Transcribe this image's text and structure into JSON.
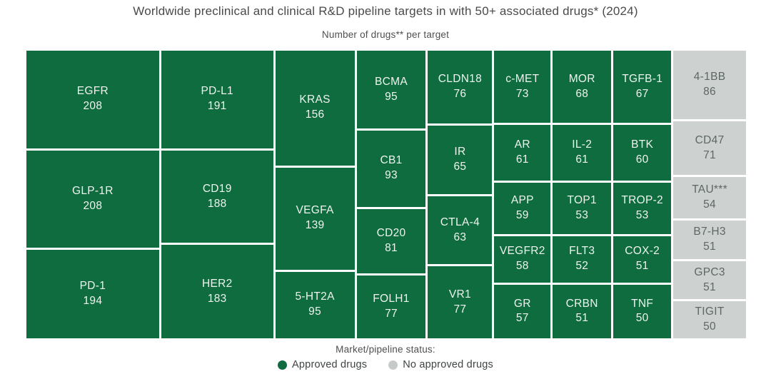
{
  "title": "Worldwide preclinical and clinical R&D pipeline targets in with 50+ associated drugs* (2024)",
  "subtitle": "Number of drugs** per target",
  "legend": {
    "title": "Market/pipeline status:",
    "items": [
      {
        "label": "Approved drugs",
        "color": "#0e6c3e"
      },
      {
        "label": "No approved drugs",
        "color": "#c6cbc9"
      }
    ]
  },
  "colors": {
    "approved_cell": "#0e6c3e",
    "no_approved_cell": "#cdd2d0",
    "approved_text": "#eff4f0",
    "no_approved_text": "#5d6764",
    "background": "#ffffff"
  },
  "chart_data": {
    "type": "treemap",
    "title": "Worldwide preclinical and clinical R&D pipeline targets in with 50+ associated drugs* (2024)",
    "value_label": "Number of drugs** per target",
    "legend": [
      "Approved drugs",
      "No approved drugs"
    ],
    "targets": [
      {
        "name": "EGFR",
        "value": 208,
        "status": "approved"
      },
      {
        "name": "GLP-1R",
        "value": 208,
        "status": "approved"
      },
      {
        "name": "PD-1",
        "value": 194,
        "status": "approved"
      },
      {
        "name": "PD-L1",
        "value": 191,
        "status": "approved"
      },
      {
        "name": "CD19",
        "value": 188,
        "status": "approved"
      },
      {
        "name": "HER2",
        "value": 183,
        "status": "approved"
      },
      {
        "name": "KRAS",
        "value": 156,
        "status": "approved"
      },
      {
        "name": "VEGFA",
        "value": 139,
        "status": "approved"
      },
      {
        "name": "5-HT2A",
        "value": 95,
        "status": "approved"
      },
      {
        "name": "BCMA",
        "value": 95,
        "status": "approved"
      },
      {
        "name": "CB1",
        "value": 93,
        "status": "approved"
      },
      {
        "name": "CD20",
        "value": 81,
        "status": "approved"
      },
      {
        "name": "FOLH1",
        "value": 77,
        "status": "approved"
      },
      {
        "name": "CLDN18",
        "value": 76,
        "status": "approved"
      },
      {
        "name": "IR",
        "value": 65,
        "status": "approved"
      },
      {
        "name": "CTLA-4",
        "value": 63,
        "status": "approved"
      },
      {
        "name": "VR1",
        "value": 77,
        "status": "approved"
      },
      {
        "name": "c-MET",
        "value": 73,
        "status": "approved"
      },
      {
        "name": "AR",
        "value": 61,
        "status": "approved"
      },
      {
        "name": "APP",
        "value": 59,
        "status": "approved"
      },
      {
        "name": "VEGFR2",
        "value": 58,
        "status": "approved"
      },
      {
        "name": "GR",
        "value": 57,
        "status": "approved"
      },
      {
        "name": "MOR",
        "value": 68,
        "status": "approved"
      },
      {
        "name": "IL-2",
        "value": 61,
        "status": "approved"
      },
      {
        "name": "TOP1",
        "value": 53,
        "status": "approved"
      },
      {
        "name": "FLT3",
        "value": 52,
        "status": "approved"
      },
      {
        "name": "CRBN",
        "value": 51,
        "status": "approved"
      },
      {
        "name": "TGFB-1",
        "value": 67,
        "status": "approved"
      },
      {
        "name": "BTK",
        "value": 60,
        "status": "approved"
      },
      {
        "name": "TROP-2",
        "value": 53,
        "status": "approved"
      },
      {
        "name": "COX-2",
        "value": 51,
        "status": "approved"
      },
      {
        "name": "TNF",
        "value": 50,
        "status": "approved"
      },
      {
        "name": "4-1BB",
        "value": 86,
        "status": "no_approved"
      },
      {
        "name": "CD47",
        "value": 71,
        "status": "no_approved"
      },
      {
        "name": "TAU***",
        "value": 54,
        "status": "no_approved"
      },
      {
        "name": "B7-H3",
        "value": 51,
        "status": "no_approved"
      },
      {
        "name": "GPC3",
        "value": 51,
        "status": "no_approved"
      },
      {
        "name": "TIGIT",
        "value": 50,
        "status": "no_approved"
      }
    ]
  },
  "treemap": {
    "columns": [
      {
        "cells": [
          {
            "label": "EGFR",
            "value": "208"
          },
          {
            "label": "GLP-1R",
            "value": "208"
          },
          {
            "label": "PD-1",
            "value": "194"
          }
        ]
      },
      {
        "cells": [
          {
            "label": "PD-L1",
            "value": "191"
          },
          {
            "label": "CD19",
            "value": "188"
          },
          {
            "label": "HER2",
            "value": "183"
          }
        ]
      },
      {
        "cells": [
          {
            "label": "KRAS",
            "value": "156"
          },
          {
            "label": "VEGFA",
            "value": "139"
          },
          {
            "label": "5-HT2A",
            "value": "95"
          }
        ]
      },
      {
        "cells": [
          {
            "label": "BCMA",
            "value": "95"
          },
          {
            "label": "CB1",
            "value": "93"
          },
          {
            "label": "CD20",
            "value": "81"
          },
          {
            "label": "FOLH1",
            "value": "77"
          }
        ]
      },
      {
        "cells": [
          {
            "label": "CLDN18",
            "value": "76"
          },
          {
            "label": "IR",
            "value": "65"
          },
          {
            "label": "CTLA-4",
            "value": "63"
          },
          {
            "label": "VR1",
            "value": "77"
          }
        ]
      },
      {
        "cells": [
          {
            "label": "c-MET",
            "value": "73"
          },
          {
            "label": "AR",
            "value": "61"
          },
          {
            "label": "APP",
            "value": "59"
          },
          {
            "label": "VEGFR2",
            "value": "58"
          },
          {
            "label": "GR",
            "value": "57"
          }
        ]
      },
      {
        "cells": [
          {
            "label": "MOR",
            "value": "68"
          },
          {
            "label": "IL-2",
            "value": "61"
          },
          {
            "label": "TOP1",
            "value": "53"
          },
          {
            "label": "FLT3",
            "value": "52"
          },
          {
            "label": "CRBN",
            "value": "51"
          }
        ]
      },
      {
        "cells": [
          {
            "label": "TGFB-1",
            "value": "67"
          },
          {
            "label": "BTK",
            "value": "60"
          },
          {
            "label": "TROP-2",
            "value": "53"
          },
          {
            "label": "COX-2",
            "value": "51"
          },
          {
            "label": "TNF",
            "value": "50"
          }
        ]
      },
      {
        "cells": [
          {
            "label": "4-1BB",
            "value": "86"
          },
          {
            "label": "CD47",
            "value": "71"
          },
          {
            "label": "TAU***",
            "value": "54"
          },
          {
            "label": "B7-H3",
            "value": "51"
          },
          {
            "label": "GPC3",
            "value": "51"
          },
          {
            "label": "TIGIT",
            "value": "50"
          }
        ]
      }
    ]
  }
}
